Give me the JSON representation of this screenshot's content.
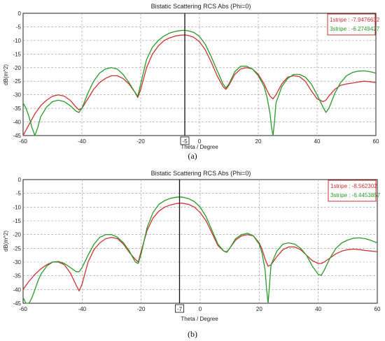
{
  "chart_data": [
    {
      "type": "line",
      "title": "Bistatic Scattering RCS Abs (Phi=0)",
      "xlabel": "Theta / Degree",
      "ylabel": "dB(m^2)",
      "xlim": [
        -60,
        60
      ],
      "ylim": [
        -45,
        0
      ],
      "xticks": [
        -60,
        -40,
        -20,
        0,
        20,
        40,
        60
      ],
      "yticks": [
        0,
        -5,
        -10,
        -15,
        -20,
        -25,
        -30,
        -35,
        -40,
        -45
      ],
      "grid": true,
      "legend_position": "top-right",
      "marker": {
        "x": -5,
        "label": "-5"
      },
      "caption": "(a)",
      "series": [
        {
          "name": "1stripe",
          "legend_text": "1stripe : -7.9476632",
          "color": "#cc3333",
          "x": [
            -60,
            -58,
            -56,
            -54,
            -52,
            -50,
            -48,
            -46,
            -44,
            -42,
            -41,
            -40,
            -38,
            -36,
            -34,
            -32,
            -30,
            -28,
            -26,
            -24,
            -22,
            -21,
            -20,
            -18,
            -16,
            -14,
            -12,
            -10,
            -8,
            -6,
            -5,
            -4,
            -2,
            0,
            2,
            4,
            6,
            8,
            9,
            10,
            12,
            14,
            16,
            18,
            20,
            22,
            23,
            24,
            25,
            26,
            28,
            30,
            32,
            34,
            36,
            38,
            40,
            42,
            43,
            44,
            46,
            48,
            50,
            52,
            54,
            56,
            58,
            60
          ],
          "y": [
            -45,
            -41,
            -37,
            -34,
            -32,
            -30.5,
            -30,
            -30.5,
            -32,
            -34.5,
            -35.5,
            -35,
            -31.5,
            -28,
            -25.5,
            -24,
            -23,
            -23,
            -24,
            -26,
            -29,
            -31,
            -28,
            -20,
            -15,
            -12,
            -10,
            -9,
            -8.3,
            -8,
            -8,
            -8.1,
            -8.8,
            -10.5,
            -13.5,
            -18,
            -23,
            -27,
            -28,
            -26.5,
            -22.5,
            -20.5,
            -20,
            -20.5,
            -22.5,
            -26,
            -28.5,
            -30.5,
            -31.5,
            -30,
            -26,
            -23.5,
            -23,
            -23.3,
            -25,
            -28.5,
            -31.5,
            -32.5,
            -32,
            -30.5,
            -28,
            -26.5,
            -26,
            -25.7,
            -25.3,
            -25,
            -25.2,
            -25.5
          ]
        },
        {
          "name": "3stripe",
          "legend_text": "3stripe : -6.2749427",
          "color": "#2a9a2a",
          "x": [
            -60,
            -59,
            -58,
            -57,
            -56,
            -55,
            -54,
            -52,
            -50,
            -48,
            -46,
            -44,
            -42,
            -41,
            -40,
            -38,
            -36,
            -34,
            -32,
            -30,
            -28,
            -26,
            -24,
            -22,
            -21,
            -20,
            -18,
            -16,
            -14,
            -12,
            -10,
            -8,
            -6,
            -5,
            -4,
            -2,
            0,
            2,
            4,
            6,
            8,
            9,
            10,
            12,
            14,
            16,
            18,
            20,
            22,
            23,
            24,
            24.5,
            25,
            25.5,
            26,
            28,
            30,
            32,
            34,
            36,
            38,
            40,
            42,
            43,
            44,
            46,
            48,
            50,
            52,
            54,
            56,
            58,
            60
          ],
          "y": [
            -33,
            -35,
            -38,
            -42,
            -45,
            -42,
            -38,
            -34.5,
            -32.5,
            -32,
            -32.5,
            -34,
            -36,
            -36.5,
            -35,
            -29.5,
            -25,
            -22,
            -20.5,
            -20,
            -20.5,
            -22.5,
            -25.5,
            -29,
            -30.5,
            -26,
            -17,
            -12.5,
            -10,
            -8.3,
            -7.2,
            -6.6,
            -6.3,
            -6.3,
            -6.4,
            -7,
            -8.5,
            -11.5,
            -16,
            -21,
            -26,
            -27.5,
            -26,
            -21.5,
            -19.5,
            -19.5,
            -20.5,
            -23,
            -27,
            -31,
            -37,
            -42,
            -45,
            -40,
            -33,
            -27,
            -24,
            -22.5,
            -22.5,
            -23.5,
            -26,
            -30,
            -34.5,
            -36.5,
            -35,
            -29.5,
            -25.5,
            -23,
            -21.8,
            -21.3,
            -21.2,
            -21.5,
            -22
          ]
        }
      ]
    },
    {
      "type": "line",
      "title": "Bistatic Scattering RCS Abs (Phi=0)",
      "xlabel": "Theta / Degree",
      "ylabel": "dB(m^2)",
      "xlim": [
        -60,
        60
      ],
      "ylim": [
        -45,
        0
      ],
      "xticks": [
        -60,
        -40,
        -20,
        0,
        20,
        40,
        60
      ],
      "yticks": [
        0,
        -5,
        -10,
        -15,
        -20,
        -25,
        -30,
        -35,
        -40,
        -45
      ],
      "grid": true,
      "legend_position": "top-right",
      "marker": {
        "x": -7,
        "label": "-7"
      },
      "caption": "(b)",
      "series": [
        {
          "name": "1stripe",
          "legend_text": "1stripe : -8.562302",
          "color": "#cc3333",
          "x": [
            -60,
            -58,
            -56,
            -54,
            -52,
            -50,
            -48,
            -46,
            -44,
            -42,
            -41,
            -40,
            -38,
            -36,
            -34,
            -32,
            -30,
            -28,
            -26,
            -24,
            -22,
            -21,
            -20,
            -18,
            -16,
            -14,
            -12,
            -10,
            -8,
            -7,
            -6,
            -4,
            -2,
            0,
            2,
            4,
            6,
            8,
            9,
            10,
            12,
            14,
            16,
            18,
            20,
            21,
            22,
            23,
            24,
            26,
            28,
            30,
            32,
            34,
            36,
            38,
            40,
            41,
            42,
            44,
            46,
            48,
            50,
            52,
            54,
            56,
            58,
            60
          ],
          "y": [
            -40,
            -37,
            -34.5,
            -32.5,
            -31,
            -30,
            -30,
            -31,
            -34,
            -38.5,
            -40.5,
            -38,
            -30,
            -25.5,
            -23,
            -21.5,
            -21,
            -21.5,
            -23.5,
            -26.5,
            -29,
            -30,
            -26,
            -18.5,
            -14,
            -11.5,
            -10,
            -9.2,
            -8.7,
            -8.6,
            -8.6,
            -9,
            -10,
            -12,
            -15,
            -19.5,
            -24,
            -26,
            -26.5,
            -25,
            -22,
            -20.5,
            -20,
            -20.5,
            -23,
            -25.5,
            -29,
            -31.5,
            -31,
            -28,
            -25.5,
            -24.5,
            -24.5,
            -25.5,
            -27.5,
            -29.5,
            -30.5,
            -30.5,
            -30,
            -28.5,
            -27,
            -26,
            -25.5,
            -25.3,
            -25.5,
            -25.8,
            -26,
            -26.2
          ]
        },
        {
          "name": "3stripe",
          "legend_text": "3stripe : -6.4453857",
          "color": "#2a9a2a",
          "x": [
            -60,
            -59,
            -58,
            -57,
            -56,
            -55,
            -54,
            -52,
            -50,
            -48,
            -46,
            -44,
            -42,
            -41,
            -40,
            -38,
            -36,
            -34,
            -32,
            -30,
            -28,
            -26,
            -24,
            -22,
            -21,
            -20,
            -18,
            -16,
            -14,
            -12,
            -10,
            -8,
            -7,
            -6,
            -4,
            -2,
            0,
            2,
            4,
            6,
            8,
            9,
            10,
            12,
            14,
            16,
            18,
            20,
            21,
            22,
            22.5,
            23,
            23.5,
            24,
            26,
            28,
            30,
            32,
            34,
            36,
            38,
            40,
            41,
            42,
            44,
            46,
            48,
            50,
            52,
            54,
            56,
            58,
            60
          ],
          "y": [
            -43,
            -45,
            -45,
            -43,
            -40,
            -37,
            -34.5,
            -31.5,
            -30,
            -29.8,
            -30.5,
            -32,
            -33.5,
            -33.5,
            -32,
            -27.5,
            -23.5,
            -21,
            -20,
            -20,
            -21,
            -23,
            -26,
            -30,
            -30.5,
            -27,
            -17.5,
            -12,
            -9,
            -7.6,
            -6.8,
            -6.4,
            -6.3,
            -6.4,
            -6.9,
            -8,
            -10,
            -13.5,
            -18.5,
            -23.5,
            -26,
            -26.3,
            -25,
            -21.5,
            -20,
            -19.5,
            -20.5,
            -23.5,
            -27,
            -33,
            -40,
            -45,
            -38,
            -31,
            -26,
            -23.5,
            -23,
            -23.5,
            -25,
            -27.5,
            -31.5,
            -34.5,
            -34.8,
            -33,
            -28.5,
            -25,
            -23,
            -22,
            -21.3,
            -21.2,
            -21.5,
            -22.2,
            -23
          ]
        }
      ]
    }
  ]
}
